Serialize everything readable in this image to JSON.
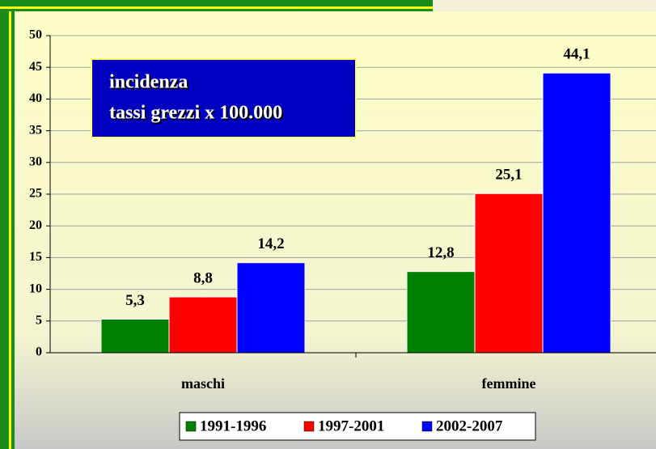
{
  "chart_data": {
    "type": "bar",
    "annotation_lines": [
      "incidenza",
      "tassi grezzi x 100.000"
    ],
    "categories": [
      "maschi",
      "femmine"
    ],
    "series": [
      {
        "name": "1991-1996",
        "color": "#008000",
        "values": [
          5.3,
          12.8
        ],
        "value_labels": [
          "5,3",
          "12,8"
        ]
      },
      {
        "name": "1997-2001",
        "color": "#ff0000",
        "values": [
          8.8,
          25.1
        ],
        "value_labels": [
          "8,8",
          "25,1"
        ]
      },
      {
        "name": "2002-2007",
        "color": "#0000ff",
        "values": [
          14.2,
          44.1
        ],
        "value_labels": [
          "14,2",
          "44,1"
        ]
      }
    ],
    "ylim": [
      0,
      50
    ],
    "yticks": [
      0,
      5,
      10,
      15,
      20,
      25,
      30,
      35,
      40,
      45,
      50
    ],
    "grid": true,
    "legend": "bottom"
  }
}
